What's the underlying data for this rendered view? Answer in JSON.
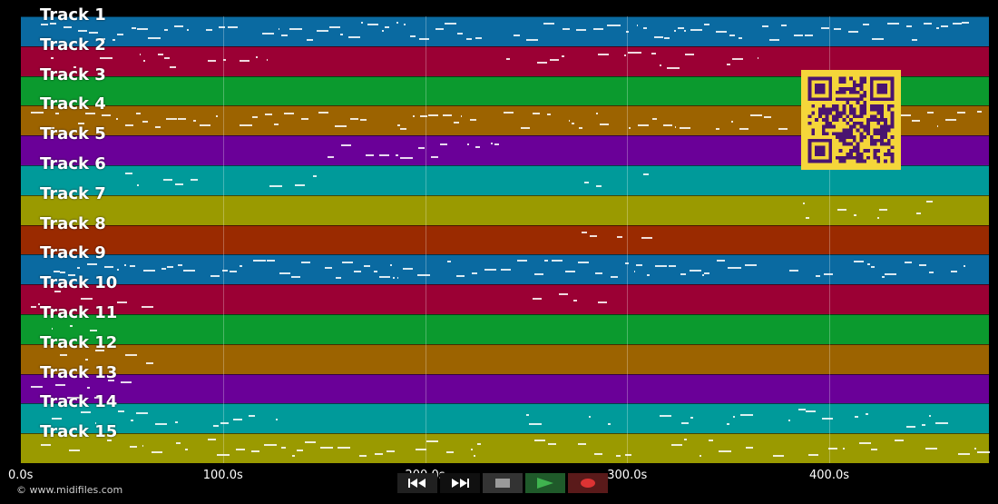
{
  "tracks": [
    {
      "label": "Track 1",
      "color": "#0a6aa1"
    },
    {
      "label": "Track 2",
      "color": "#9b0034"
    },
    {
      "label": "Track 3",
      "color": "#0b9a2e"
    },
    {
      "label": "Track 4",
      "color": "#9c6300"
    },
    {
      "label": "Track 5",
      "color": "#6a0098"
    },
    {
      "label": "Track 6",
      "color": "#009a9a"
    },
    {
      "label": "Track 7",
      "color": "#9a9a00"
    },
    {
      "label": "Track 8",
      "color": "#9a2a00"
    },
    {
      "label": "Track 9",
      "color": "#0a6aa1"
    },
    {
      "label": "Track 10",
      "color": "#9b0034"
    },
    {
      "label": "Track 11",
      "color": "#0b9a2e"
    },
    {
      "label": "Track 12",
      "color": "#9c6300"
    },
    {
      "label": "Track 13",
      "color": "#6a0098"
    },
    {
      "label": "Track 14",
      "color": "#009a9a"
    },
    {
      "label": "Track 15",
      "color": "#9a9a00"
    }
  ],
  "timeline": {
    "ticks": [
      "0.0s",
      "100.0s",
      "200.0s",
      "300.0s",
      "400.0s"
    ],
    "max_seconds": 479
  },
  "transport": {
    "rewind_icon": "rewind-icon",
    "fast_forward_icon": "fast-forward-icon",
    "stop_icon": "stop-icon",
    "play_icon": "play-icon",
    "record_icon": "record-icon"
  },
  "copyright": "© www.midifiles.com",
  "qr_code": {
    "fg": "#4a1470",
    "bg": "#f5d63a"
  }
}
